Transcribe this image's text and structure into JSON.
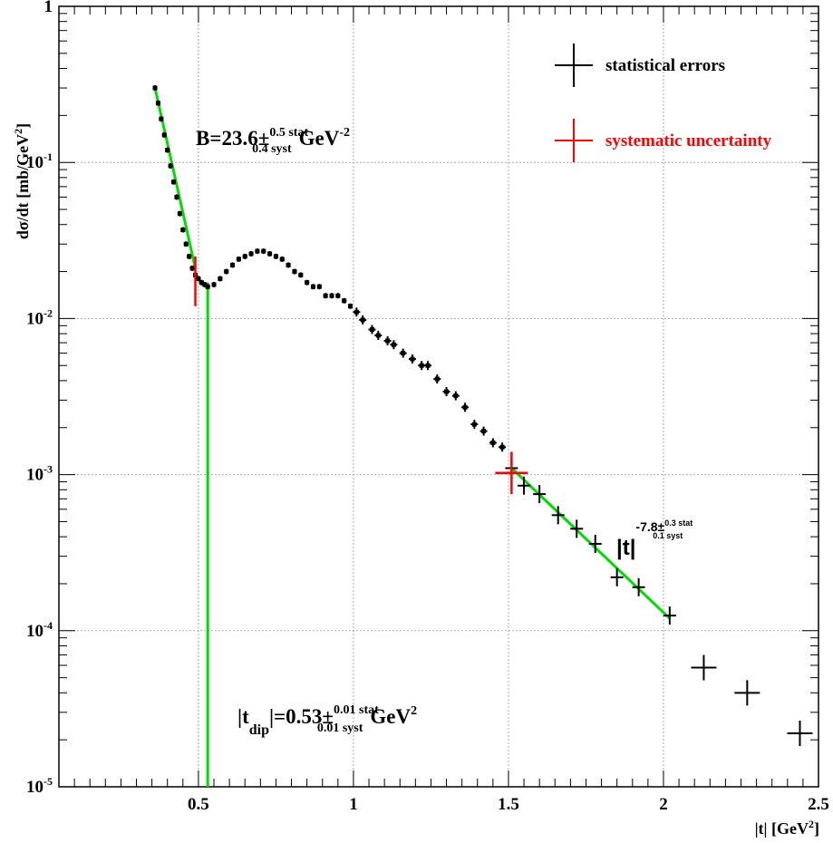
{
  "chart_data": {
    "type": "scatter",
    "title": "",
    "xlabel": "|t| [GeV",
    "xlabel_sup": "2",
    "xlabel_end": "]",
    "ylabel": "dσ/dt [mb/GeV",
    "ylabel_sup": "2",
    "ylabel_end": "]",
    "xlim": [
      0.05,
      2.5
    ],
    "ylim": [
      1e-05,
      1
    ],
    "yscale": "log",
    "grid": true,
    "x_ticks": [
      {
        "v": 0.5,
        "label": "0.5"
      },
      {
        "v": 1,
        "label": "1"
      },
      {
        "v": 1.5,
        "label": "1.5"
      },
      {
        "v": 2,
        "label": "2"
      },
      {
        "v": 2.5,
        "label": "2.5"
      }
    ],
    "y_ticks": [
      {
        "v": 1,
        "base": "1",
        "exp": ""
      },
      {
        "v": 0.1,
        "base": "10",
        "exp": "-1"
      },
      {
        "v": 0.01,
        "base": "10",
        "exp": "-2"
      },
      {
        "v": 0.001,
        "base": "10",
        "exp": "-3"
      },
      {
        "v": 0.0001,
        "base": "10",
        "exp": "-4"
      },
      {
        "v": 1e-05,
        "base": "10",
        "exp": "-5"
      }
    ],
    "legend": {
      "position": "top-right",
      "entries": [
        {
          "label": "statistical errors",
          "color": "#000000"
        },
        {
          "label": "systematic uncertainty",
          "color": "#ff0000"
        }
      ]
    },
    "data": [
      {
        "x": 0.36,
        "y": 0.3
      },
      {
        "x": 0.37,
        "y": 0.24
      },
      {
        "x": 0.38,
        "y": 0.19
      },
      {
        "x": 0.39,
        "y": 0.15
      },
      {
        "x": 0.4,
        "y": 0.12
      },
      {
        "x": 0.41,
        "y": 0.095
      },
      {
        "x": 0.42,
        "y": 0.075
      },
      {
        "x": 0.43,
        "y": 0.06
      },
      {
        "x": 0.44,
        "y": 0.047
      },
      {
        "x": 0.45,
        "y": 0.037
      },
      {
        "x": 0.46,
        "y": 0.03
      },
      {
        "x": 0.47,
        "y": 0.025
      },
      {
        "x": 0.48,
        "y": 0.021
      },
      {
        "x": 0.49,
        "y": 0.019
      },
      {
        "x": 0.5,
        "y": 0.018
      },
      {
        "x": 0.51,
        "y": 0.017
      },
      {
        "x": 0.52,
        "y": 0.0165
      },
      {
        "x": 0.53,
        "y": 0.016
      },
      {
        "x": 0.55,
        "y": 0.0165
      },
      {
        "x": 0.57,
        "y": 0.018
      },
      {
        "x": 0.59,
        "y": 0.02
      },
      {
        "x": 0.61,
        "y": 0.022
      },
      {
        "x": 0.63,
        "y": 0.024
      },
      {
        "x": 0.65,
        "y": 0.025
      },
      {
        "x": 0.67,
        "y": 0.026
      },
      {
        "x": 0.69,
        "y": 0.027
      },
      {
        "x": 0.71,
        "y": 0.027
      },
      {
        "x": 0.73,
        "y": 0.026
      },
      {
        "x": 0.75,
        "y": 0.025
      },
      {
        "x": 0.77,
        "y": 0.024
      },
      {
        "x": 0.79,
        "y": 0.022
      },
      {
        "x": 0.81,
        "y": 0.02
      },
      {
        "x": 0.83,
        "y": 0.019
      },
      {
        "x": 0.85,
        "y": 0.017
      },
      {
        "x": 0.87,
        "y": 0.016
      },
      {
        "x": 0.89,
        "y": 0.016
      },
      {
        "x": 0.91,
        "y": 0.014
      },
      {
        "x": 0.93,
        "y": 0.014
      },
      {
        "x": 0.95,
        "y": 0.014
      },
      {
        "x": 0.97,
        "y": 0.013
      },
      {
        "x": 0.99,
        "y": 0.012
      },
      {
        "x": 1.01,
        "y": 0.011
      },
      {
        "x": 1.03,
        "y": 0.0098
      },
      {
        "x": 1.06,
        "y": 0.0085
      },
      {
        "x": 1.08,
        "y": 0.0078
      },
      {
        "x": 1.11,
        "y": 0.0072
      },
      {
        "x": 1.13,
        "y": 0.0068
      },
      {
        "x": 1.16,
        "y": 0.006
      },
      {
        "x": 1.19,
        "y": 0.0055
      },
      {
        "x": 1.22,
        "y": 0.005
      },
      {
        "x": 1.24,
        "y": 0.005
      },
      {
        "x": 1.27,
        "y": 0.0041
      },
      {
        "x": 1.3,
        "y": 0.0034
      },
      {
        "x": 1.33,
        "y": 0.0032
      },
      {
        "x": 1.36,
        "y": 0.0027
      },
      {
        "x": 1.39,
        "y": 0.0021
      },
      {
        "x": 1.42,
        "y": 0.0019
      },
      {
        "x": 1.45,
        "y": 0.0016
      },
      {
        "x": 1.48,
        "y": 0.0015
      },
      {
        "x": 1.51,
        "y": 0.0011
      },
      {
        "x": 1.55,
        "y": 0.00085
      },
      {
        "x": 1.6,
        "y": 0.00075
      },
      {
        "x": 1.66,
        "y": 0.00055
      },
      {
        "x": 1.72,
        "y": 0.00045
      },
      {
        "x": 1.78,
        "y": 0.00036
      },
      {
        "x": 1.85,
        "y": 0.00022
      },
      {
        "x": 1.92,
        "y": 0.00019
      },
      {
        "x": 2.02,
        "y": 0.000125
      },
      {
        "x": 2.13,
        "y": 5.8e-05
      },
      {
        "x": 2.27,
        "y": 4e-05
      },
      {
        "x": 2.44,
        "y": 2.2e-05
      }
    ],
    "fits": [
      {
        "name": "exponential",
        "color": "#00dd00",
        "x_range": [
          0.36,
          0.49
        ],
        "y_range": [
          0.3,
          0.021
        ]
      },
      {
        "name": "power-law",
        "color": "#00dd00",
        "x_range": [
          1.51,
          2.02
        ],
        "y_range": [
          0.0011,
          0.00012
        ]
      },
      {
        "name": "dip-line",
        "color": "#00dd00",
        "x": 0.53
      }
    ],
    "annotations": {
      "slope": {
        "text": "B=23.6±",
        "sup": "0.5 stat",
        "sub": "0.4 syst",
        "unit": "GeV",
        "unit_sup": "-2"
      },
      "dip": {
        "text1": "|t",
        "sub1": "dip",
        "text2": "|=0.53±",
        "sup": "0.01 stat",
        "sub": "0.01 syst",
        "unit": "GeV",
        "unit_sup": "2"
      },
      "power": {
        "text": "|t|",
        "sup_main": "-7.8±",
        "sup": "0.3 stat",
        "sub": "0.1 syst"
      }
    },
    "syst_bars": [
      {
        "x": 0.49,
        "y_low": 0.012,
        "y_high": 0.025
      },
      {
        "x": 1.51,
        "y_low": 0.00075,
        "y_high": 0.0014
      }
    ]
  }
}
